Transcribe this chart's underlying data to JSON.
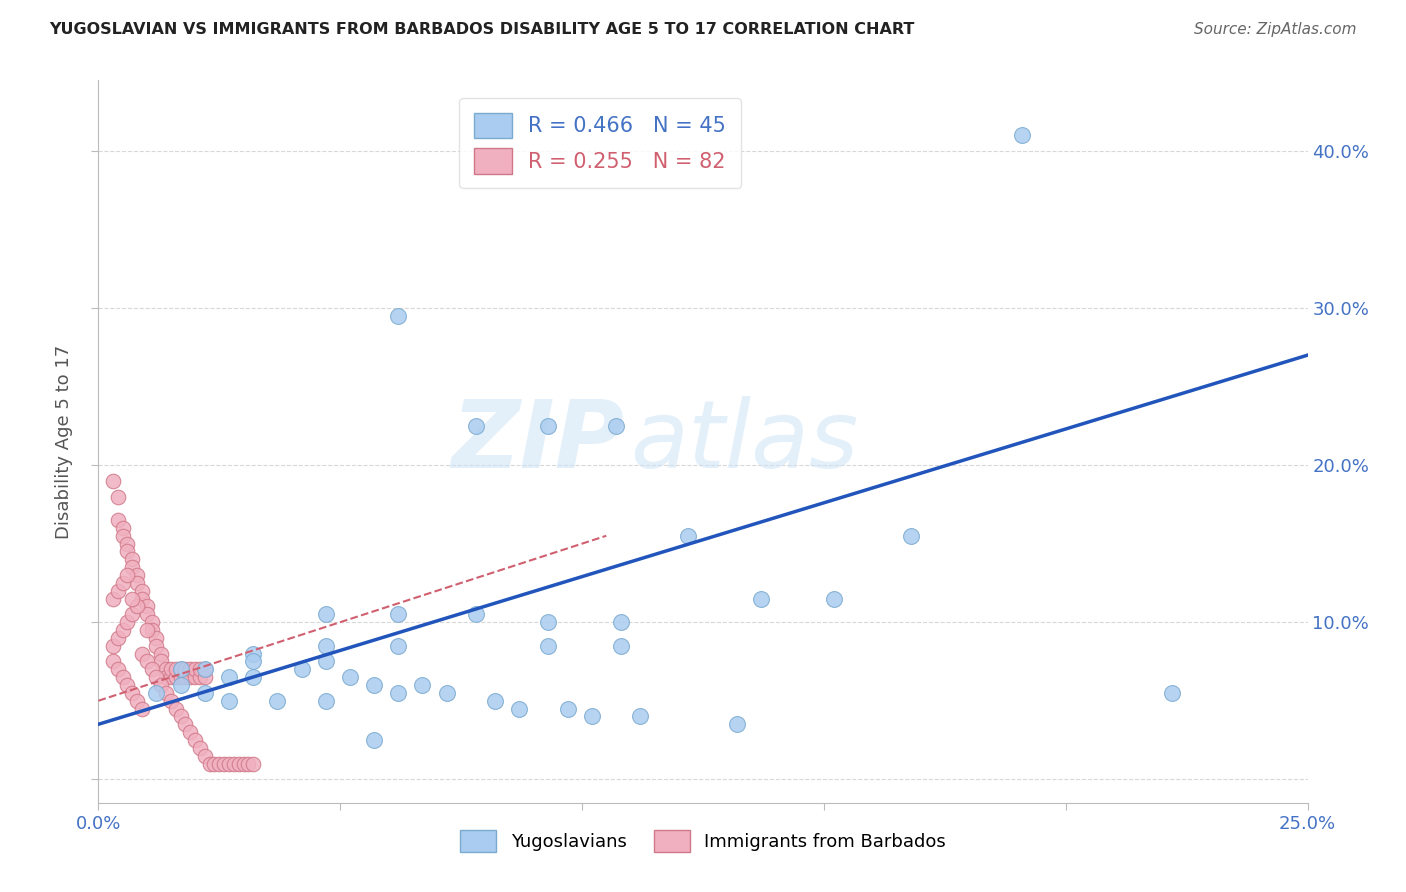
{
  "title": "YUGOSLAVIAN VS IMMIGRANTS FROM BARBADOS DISABILITY AGE 5 TO 17 CORRELATION CHART",
  "source": "Source: ZipAtlas.com",
  "ylabel": "Disability Age 5 to 17",
  "xlim": [
    0.0,
    0.25
  ],
  "ylim": [
    -0.015,
    0.445
  ],
  "watermark_zip": "ZIP",
  "watermark_atlas": "atlas",
  "legend_r1": "R = 0.466",
  "legend_n1": "N = 45",
  "legend_r2": "R = 0.255",
  "legend_n2": "N = 82",
  "blue_scatter_x": [
    0.191,
    0.062,
    0.107,
    0.078,
    0.093,
    0.122,
    0.137,
    0.152,
    0.168,
    0.047,
    0.047,
    0.062,
    0.062,
    0.078,
    0.093,
    0.093,
    0.108,
    0.108,
    0.032,
    0.032,
    0.017,
    0.017,
    0.022,
    0.027,
    0.032,
    0.042,
    0.047,
    0.052,
    0.057,
    0.062,
    0.067,
    0.072,
    0.082,
    0.087,
    0.097,
    0.102,
    0.112,
    0.132,
    0.012,
    0.022,
    0.027,
    0.037,
    0.047,
    0.057,
    0.222
  ],
  "blue_scatter_y": [
    0.41,
    0.295,
    0.225,
    0.225,
    0.225,
    0.155,
    0.115,
    0.115,
    0.155,
    0.105,
    0.085,
    0.105,
    0.085,
    0.105,
    0.1,
    0.085,
    0.1,
    0.085,
    0.08,
    0.065,
    0.07,
    0.06,
    0.07,
    0.065,
    0.075,
    0.07,
    0.075,
    0.065,
    0.06,
    0.055,
    0.06,
    0.055,
    0.05,
    0.045,
    0.045,
    0.04,
    0.04,
    0.035,
    0.055,
    0.055,
    0.05,
    0.05,
    0.05,
    0.025,
    0.055
  ],
  "pink_scatter_x": [
    0.003,
    0.004,
    0.004,
    0.005,
    0.005,
    0.006,
    0.006,
    0.007,
    0.007,
    0.008,
    0.008,
    0.009,
    0.009,
    0.01,
    0.01,
    0.011,
    0.011,
    0.012,
    0.012,
    0.013,
    0.013,
    0.014,
    0.014,
    0.015,
    0.015,
    0.016,
    0.016,
    0.017,
    0.017,
    0.018,
    0.018,
    0.019,
    0.019,
    0.02,
    0.02,
    0.021,
    0.021,
    0.022,
    0.022,
    0.003,
    0.004,
    0.005,
    0.006,
    0.007,
    0.008,
    0.009,
    0.01,
    0.011,
    0.012,
    0.013,
    0.014,
    0.015,
    0.016,
    0.017,
    0.018,
    0.019,
    0.02,
    0.021,
    0.022,
    0.023,
    0.024,
    0.025,
    0.026,
    0.027,
    0.028,
    0.029,
    0.03,
    0.031,
    0.032,
    0.003,
    0.004,
    0.005,
    0.006,
    0.007,
    0.008,
    0.009,
    0.003,
    0.004,
    0.005,
    0.006,
    0.007,
    0.01
  ],
  "pink_scatter_y": [
    0.19,
    0.18,
    0.165,
    0.16,
    0.155,
    0.15,
    0.145,
    0.14,
    0.135,
    0.13,
    0.125,
    0.12,
    0.115,
    0.11,
    0.105,
    0.1,
    0.095,
    0.09,
    0.085,
    0.08,
    0.075,
    0.07,
    0.065,
    0.065,
    0.07,
    0.065,
    0.07,
    0.065,
    0.07,
    0.065,
    0.07,
    0.065,
    0.07,
    0.065,
    0.07,
    0.065,
    0.07,
    0.065,
    0.07,
    0.085,
    0.09,
    0.095,
    0.1,
    0.105,
    0.11,
    0.08,
    0.075,
    0.07,
    0.065,
    0.06,
    0.055,
    0.05,
    0.045,
    0.04,
    0.035,
    0.03,
    0.025,
    0.02,
    0.015,
    0.01,
    0.01,
    0.01,
    0.01,
    0.01,
    0.01,
    0.01,
    0.01,
    0.01,
    0.01,
    0.075,
    0.07,
    0.065,
    0.06,
    0.055,
    0.05,
    0.045,
    0.115,
    0.12,
    0.125,
    0.13,
    0.115,
    0.095
  ],
  "blue_line_x": [
    0.0,
    0.25
  ],
  "blue_line_y": [
    0.035,
    0.27
  ],
  "pink_line_x": [
    0.0,
    0.105
  ],
  "pink_line_y": [
    0.05,
    0.155
  ],
  "title_color": "#222222",
  "axis_color": "#4472c4",
  "scatter_blue_color": "#aaccf0",
  "scatter_blue_edge": "#7aaad0",
  "scatter_pink_color": "#f0b0c0",
  "scatter_pink_edge": "#d07888",
  "line_blue_color": "#2255bb",
  "line_pink_color": "#d06070",
  "grid_color": "#d8d8d8",
  "background_color": "#ffffff"
}
